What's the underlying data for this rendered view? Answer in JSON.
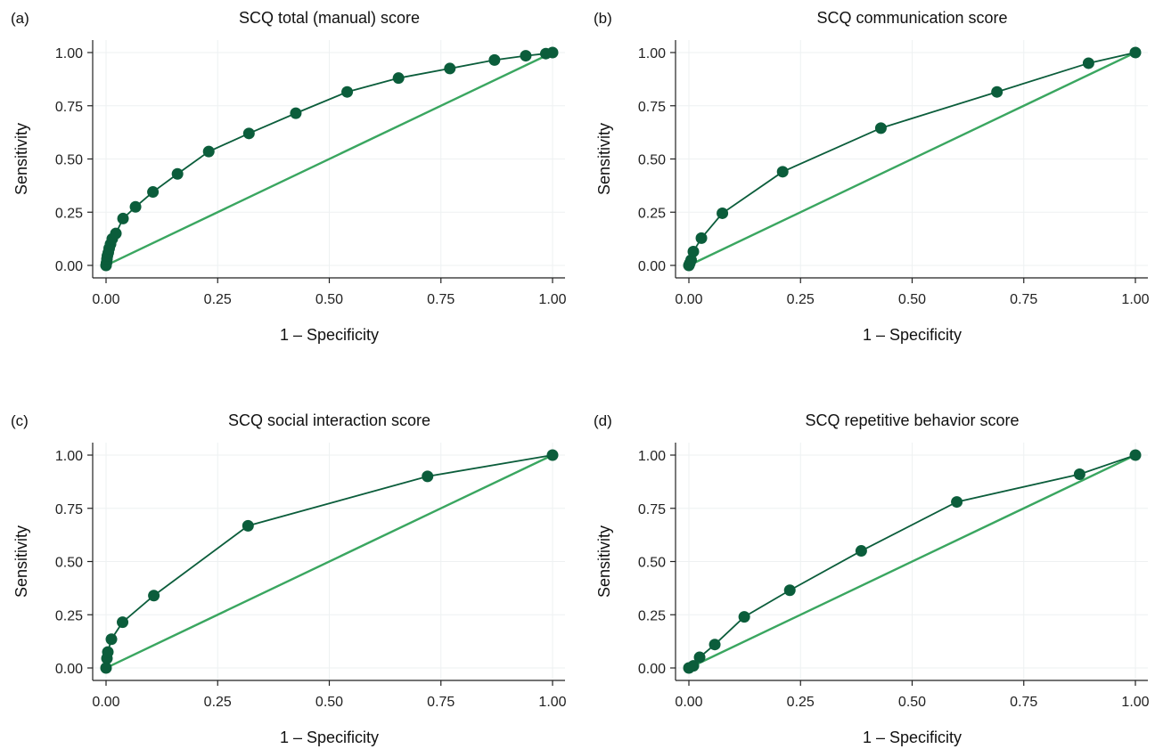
{
  "colors": {
    "roc_line": "#0b5d3b",
    "roc_marker": "#0b5d3b",
    "reference_line": "#3aa660",
    "grid": "#eef1f2",
    "axis": "#222222"
  },
  "chart_data": [
    {
      "type": "line",
      "panel": "(a)",
      "title": "SCQ total (manual) score",
      "xlabel": "1 – Specificity",
      "ylabel": "Sensitivity",
      "xlim": [
        0,
        1
      ],
      "ylim": [
        0,
        1
      ],
      "xticks": [
        "0.00",
        "0.25",
        "0.50",
        "0.75",
        "1.00"
      ],
      "yticks": [
        "0.00",
        "0.25",
        "0.50",
        "0.75",
        "1.00"
      ],
      "grid": true,
      "series": [
        {
          "x": [
            0.0,
            0.001,
            0.002,
            0.003,
            0.005,
            0.007,
            0.01,
            0.014,
            0.022,
            0.038,
            0.066,
            0.105,
            0.16,
            0.23,
            0.32,
            0.425,
            0.54,
            0.655,
            0.77,
            0.87,
            0.94,
            0.985,
            1.0
          ],
          "y": [
            0.0,
            0.012,
            0.03,
            0.045,
            0.06,
            0.08,
            0.1,
            0.125,
            0.15,
            0.22,
            0.275,
            0.345,
            0.43,
            0.535,
            0.62,
            0.715,
            0.815,
            0.88,
            0.925,
            0.965,
            0.985,
            0.995,
            1.0
          ]
        }
      ],
      "reference": {
        "x": [
          0,
          1
        ],
        "y": [
          0,
          1
        ]
      }
    },
    {
      "type": "line",
      "panel": "(b)",
      "title": "SCQ communication score",
      "xlabel": "1 – Specificity",
      "ylabel": "Sensitivity",
      "xlim": [
        0,
        1
      ],
      "ylim": [
        0,
        1
      ],
      "xticks": [
        "0.00",
        "0.25",
        "0.50",
        "0.75",
        "1.00"
      ],
      "yticks": [
        "0.00",
        "0.25",
        "0.50",
        "0.75",
        "1.00"
      ],
      "grid": true,
      "series": [
        {
          "x": [
            0.0,
            0.002,
            0.005,
            0.01,
            0.028,
            0.075,
            0.21,
            0.43,
            0.69,
            0.895,
            1.0
          ],
          "y": [
            0.0,
            0.01,
            0.025,
            0.065,
            0.128,
            0.245,
            0.44,
            0.645,
            0.815,
            0.95,
            1.0
          ]
        }
      ],
      "reference": {
        "x": [
          0,
          1
        ],
        "y": [
          0,
          1
        ]
      }
    },
    {
      "type": "line",
      "panel": "(c)",
      "title": "SCQ social interaction score",
      "xlabel": "1 – Specificity",
      "ylabel": "Sensitivity",
      "xlim": [
        0,
        1
      ],
      "ylim": [
        0,
        1
      ],
      "xticks": [
        "0.00",
        "0.25",
        "0.50",
        "0.75",
        "1.00"
      ],
      "yticks": [
        "0.00",
        "0.25",
        "0.50",
        "0.75",
        "1.00"
      ],
      "grid": true,
      "series": [
        {
          "x": [
            0.0,
            0.002,
            0.004,
            0.012,
            0.037,
            0.107,
            0.318,
            0.72,
            1.0
          ],
          "y": [
            0.0,
            0.045,
            0.075,
            0.135,
            0.215,
            0.34,
            0.668,
            0.9,
            1.0
          ]
        }
      ],
      "reference": {
        "x": [
          0,
          1
        ],
        "y": [
          0,
          1
        ]
      }
    },
    {
      "type": "line",
      "panel": "(d)",
      "title": "SCQ repetitive behavior score",
      "xlabel": "1 – Specificity",
      "ylabel": "Sensitivity",
      "xlim": [
        0,
        1
      ],
      "ylim": [
        0,
        1
      ],
      "xticks": [
        "0.00",
        "0.25",
        "0.50",
        "0.75",
        "1.00"
      ],
      "yticks": [
        "0.00",
        "0.25",
        "0.50",
        "0.75",
        "1.00"
      ],
      "grid": true,
      "series": [
        {
          "x": [
            0.0,
            0.01,
            0.024,
            0.058,
            0.124,
            0.226,
            0.386,
            0.6,
            0.875,
            1.0
          ],
          "y": [
            0.0,
            0.01,
            0.05,
            0.11,
            0.24,
            0.365,
            0.55,
            0.78,
            0.91,
            1.0
          ]
        }
      ],
      "reference": {
        "x": [
          0,
          1
        ],
        "y": [
          0,
          1
        ]
      }
    }
  ]
}
